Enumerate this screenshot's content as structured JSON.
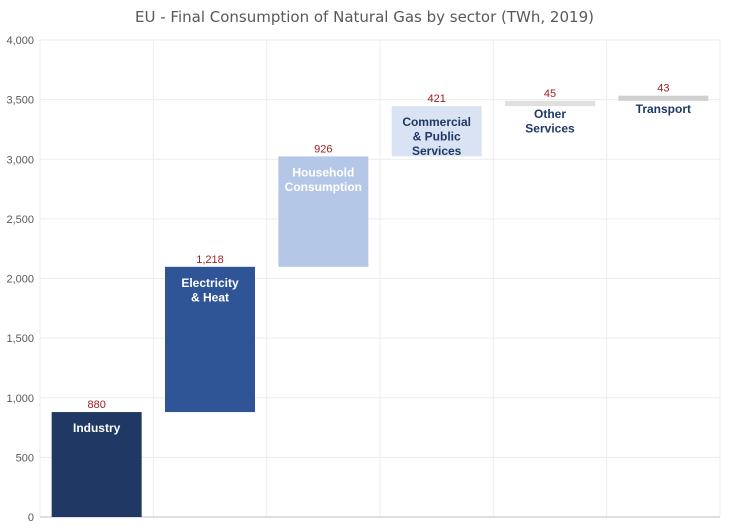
{
  "chart_data": {
    "type": "bar",
    "subtype": "waterfall",
    "title": "EU - Final Consumption of Natural Gas by sector (TWh, 2019)",
    "xlabel": "",
    "ylabel": "",
    "ylim": [
      0,
      4000
    ],
    "yticks": [
      "0",
      "500",
      "1,000",
      "1,500",
      "2,000",
      "2,500",
      "3,000",
      "3,500",
      "4,000"
    ],
    "grid": true,
    "legend": "none",
    "categories": [
      {
        "lines": [
          "Industry"
        ],
        "value": 880,
        "label": "880",
        "color": "#1f3864",
        "text_color": "#ffffff",
        "label_pos": "inside-top"
      },
      {
        "lines": [
          "Electricity",
          "& Heat"
        ],
        "value": 1218,
        "label": "1,218",
        "color": "#2f5597",
        "text_color": "#ffffff",
        "label_pos": "inside-top"
      },
      {
        "lines": [
          "Household",
          "Consumption"
        ],
        "value": 926,
        "label": "926",
        "color": "#b4c7e7",
        "text_color": "#ffffff",
        "label_pos": "inside-top"
      },
      {
        "lines": [
          "Commercial",
          "& Public",
          "Services"
        ],
        "value": 421,
        "label": "421",
        "color": "#dae3f3",
        "text_color": "#1f3864",
        "label_pos": "inside-top"
      },
      {
        "lines": [
          "Other",
          "Services"
        ],
        "value": 45,
        "label": "45",
        "color": "#e0e0e0",
        "text_color": "#1f3864",
        "label_pos": "below"
      },
      {
        "lines": [
          "Transport"
        ],
        "value": 43,
        "label": "43",
        "color": "#d0d0d0",
        "text_color": "#1f3864",
        "label_pos": "below"
      }
    ]
  }
}
